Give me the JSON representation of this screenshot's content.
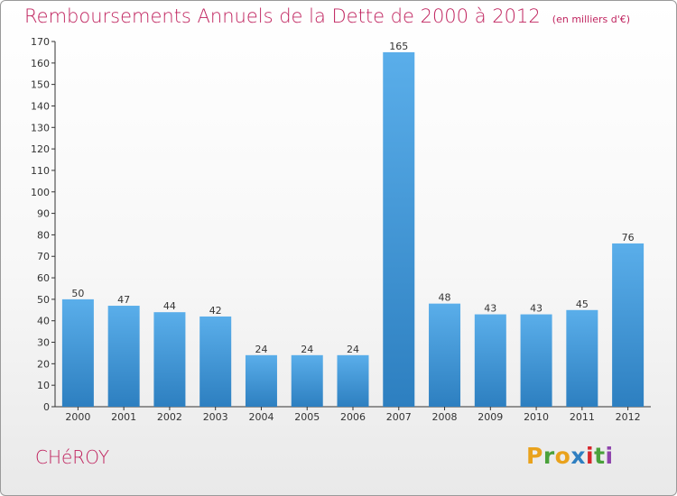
{
  "header": {
    "title": "Remboursements Annuels de la Dette de 2000 à 2012",
    "unit": "(en milliers d'€)"
  },
  "footer": {
    "commune": "CHéROY",
    "logo": [
      "P",
      "r",
      "o",
      "x",
      "i",
      "t",
      "i"
    ],
    "logo_colors": [
      "#e9a21c",
      "#4aa13b",
      "#e9a21c",
      "#2f7fc1",
      "#d7262b",
      "#4aa13b",
      "#8e44ad"
    ]
  },
  "chart_data": {
    "type": "bar",
    "title": "Remboursements Annuels de la Dette de 2000 à 2012",
    "ylabel": "",
    "xlabel": "",
    "categories": [
      "2000",
      "2001",
      "2002",
      "2003",
      "2004",
      "2005",
      "2006",
      "2007",
      "2008",
      "2009",
      "2010",
      "2011",
      "2012"
    ],
    "values": [
      50,
      47,
      44,
      42,
      24,
      24,
      24,
      165,
      48,
      43,
      43,
      45,
      76
    ],
    "ylim": [
      0,
      170
    ],
    "ytick_step": 10,
    "grid": false,
    "bar_color_top": "#5aaeea",
    "bar_color_bottom": "#2d7fc0",
    "title_color": "#c0245f"
  }
}
